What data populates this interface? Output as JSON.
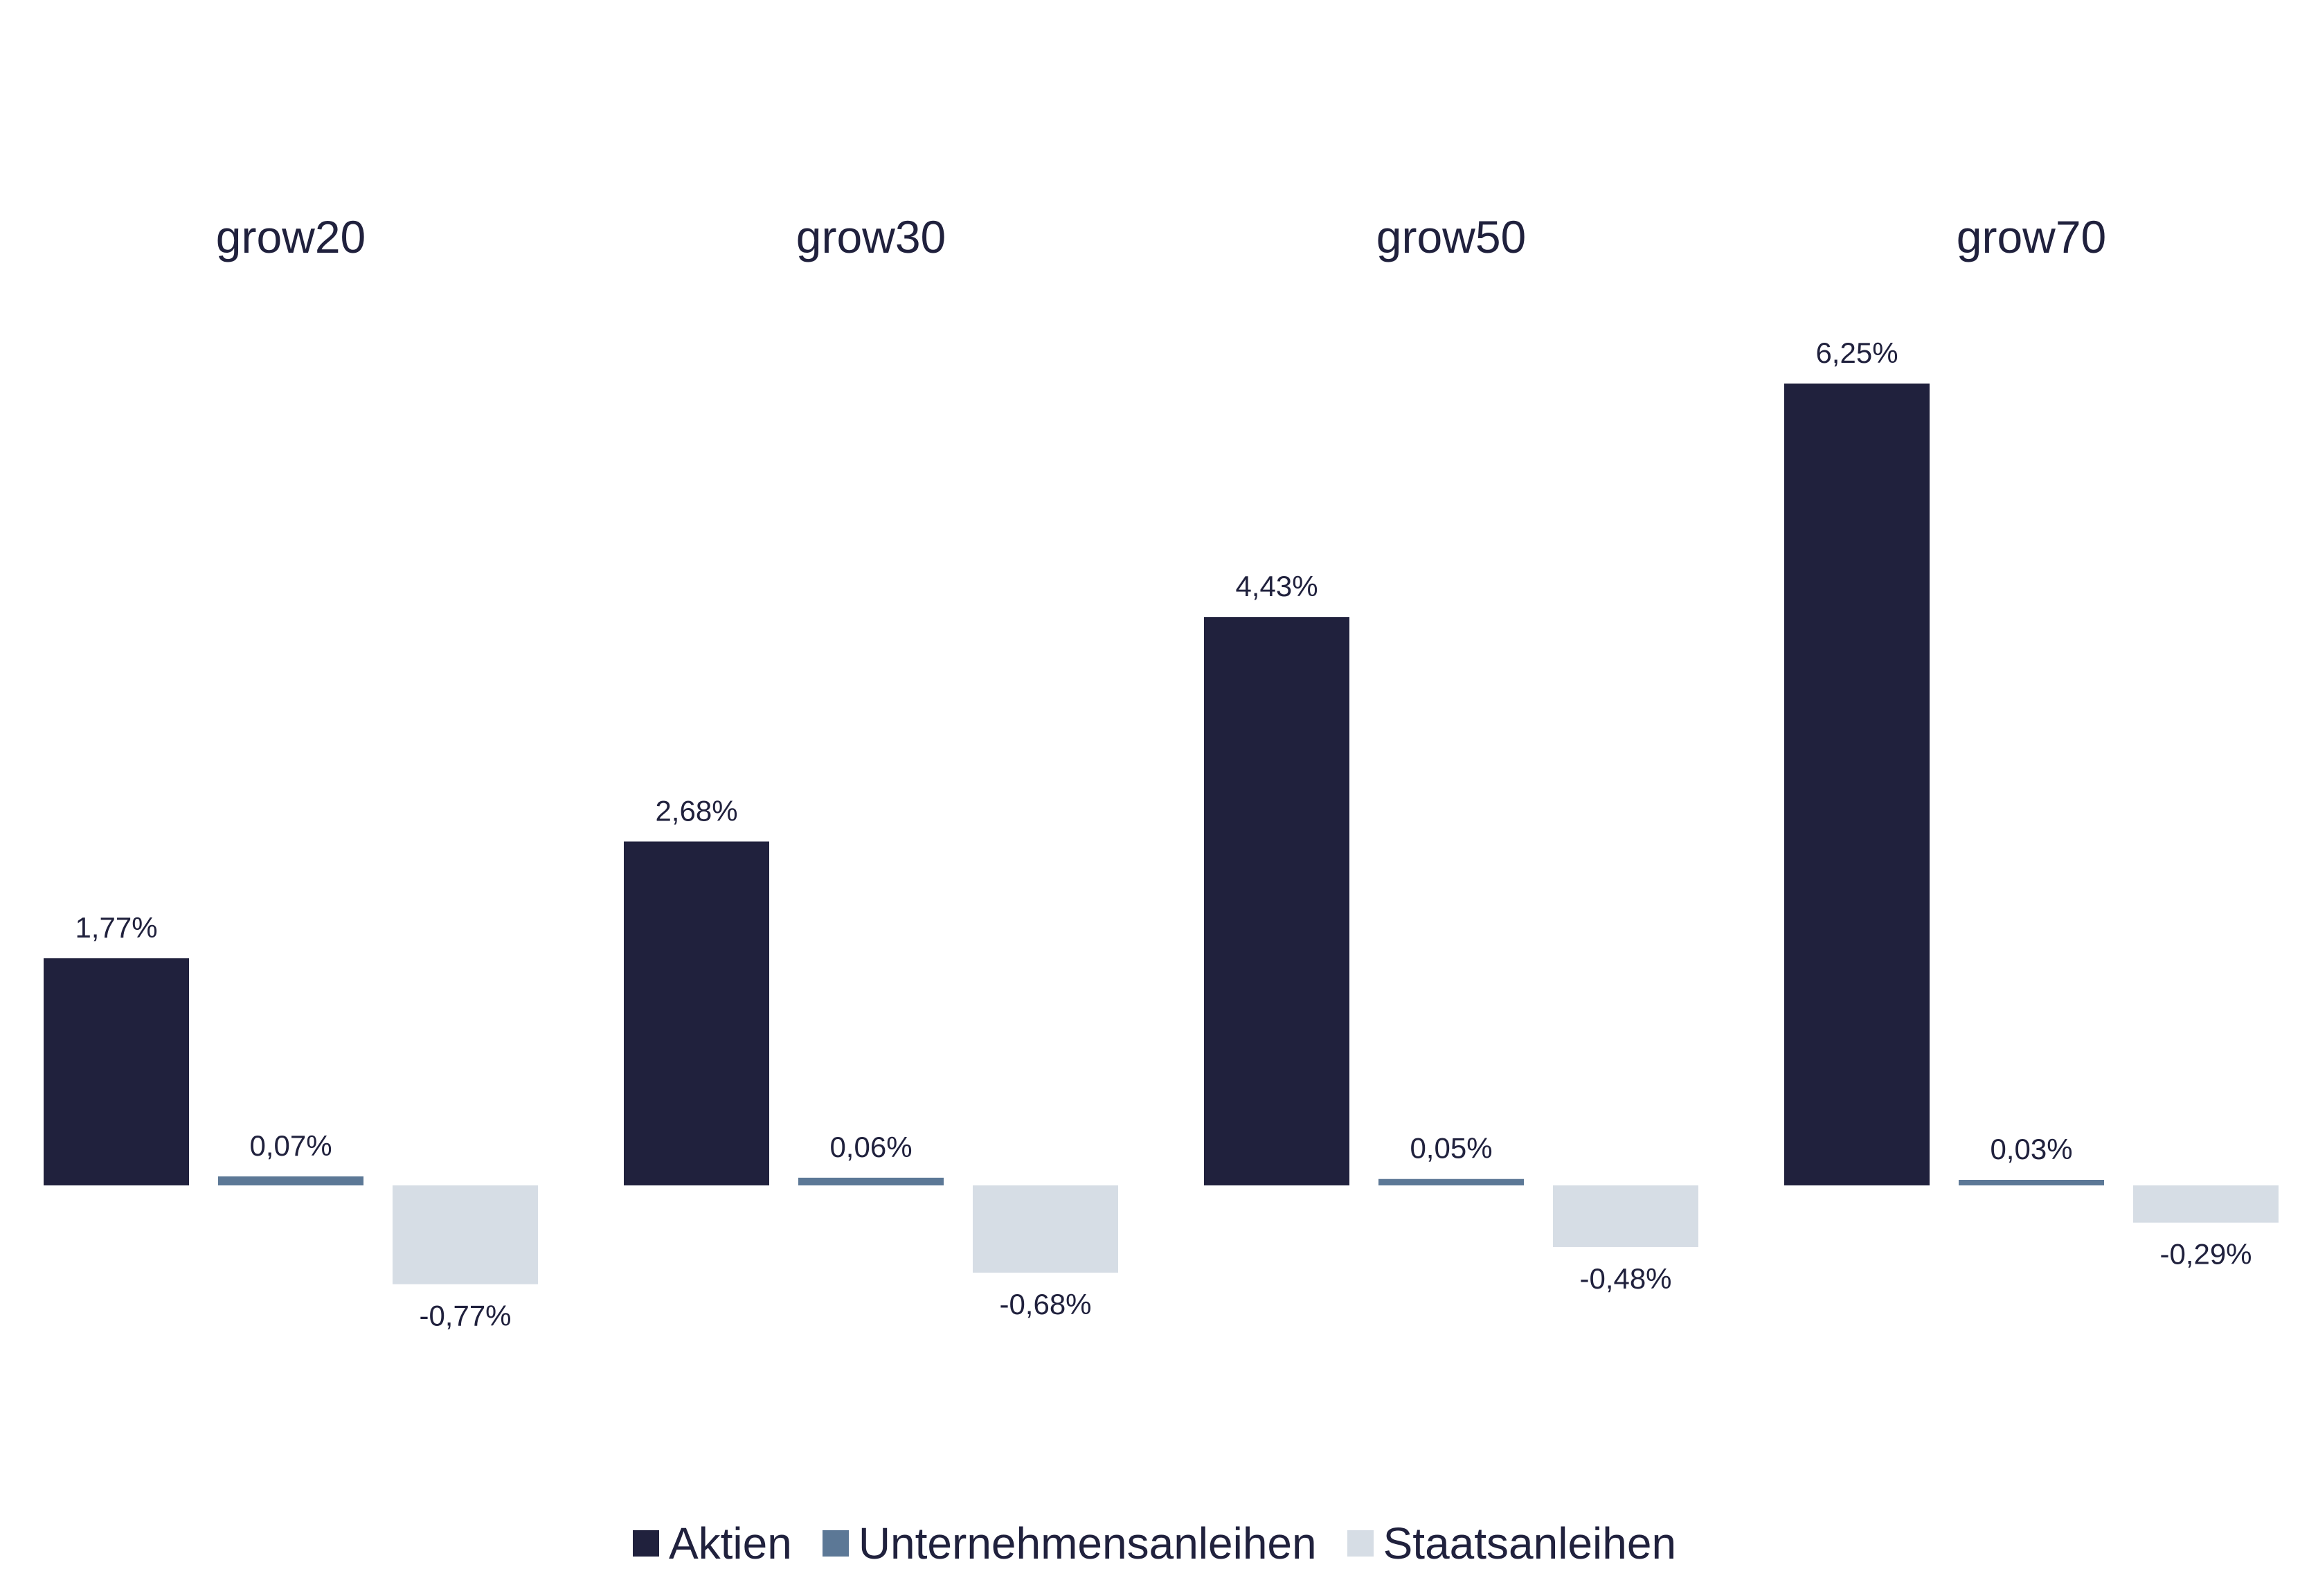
{
  "chart_data": {
    "type": "bar",
    "categories": [
      "grow20",
      "grow30",
      "grow50",
      "grow70"
    ],
    "series": [
      {
        "name": "Aktien",
        "color": "#20213d",
        "values": [
          1.77,
          2.68,
          4.43,
          6.25
        ],
        "labels": [
          "1,77%",
          "2,68%",
          "4,43%",
          "6,25%"
        ]
      },
      {
        "name": "Unternehmensanleihen",
        "color": "#5c7896",
        "values": [
          0.07,
          0.06,
          0.05,
          0.03
        ],
        "labels": [
          "0,07%",
          "0,06%",
          "0,05%",
          "0,03%"
        ]
      },
      {
        "name": "Staatsanleihen",
        "color": "#d6dde5",
        "values": [
          -0.77,
          -0.68,
          -0.48,
          -0.29
        ],
        "labels": [
          "-0,77%",
          "-0,68%",
          "-0,48%",
          "-0,29%"
        ]
      }
    ],
    "ylim": [
      -2.3,
      7.4
    ],
    "grid": false,
    "legend_position": "bottom-center",
    "title": "",
    "xlabel": "",
    "ylabel": ""
  }
}
